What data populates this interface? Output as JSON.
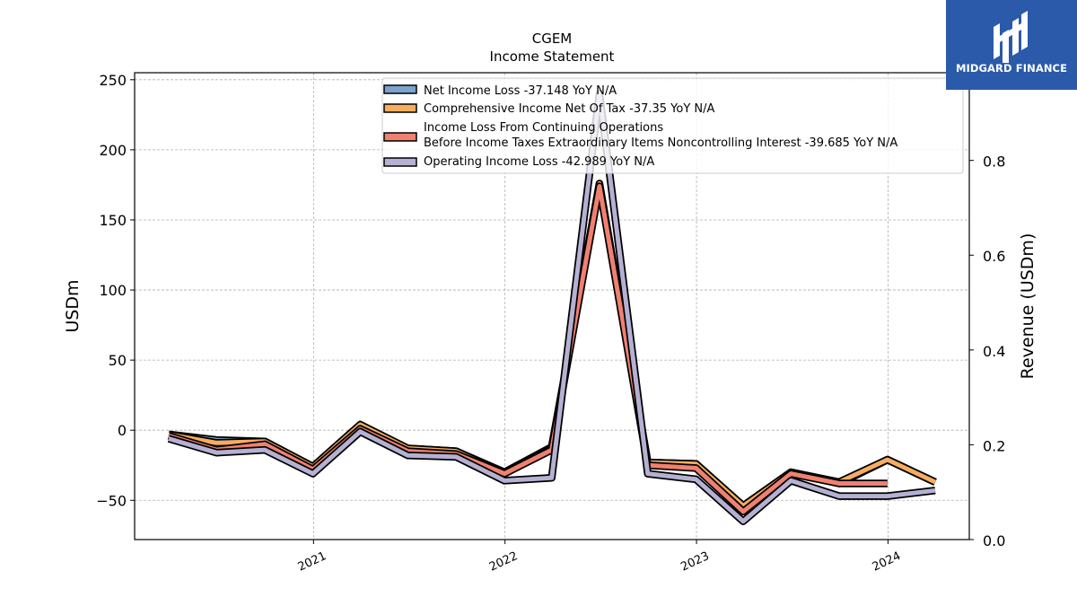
{
  "chart_data": {
    "type": "line",
    "title": "CGEM",
    "subtitle": "Income Statement",
    "ylabel": "USDm",
    "y2label": "Revenue (USDm)",
    "ylim": [
      -78,
      255
    ],
    "y2lim": [
      0.0,
      0.985
    ],
    "yticks": [
      "250",
      "200",
      "150",
      "100",
      "50",
      "0",
      "−50"
    ],
    "y2ticks": [
      "0.8",
      "0.6",
      "0.4",
      "0.2",
      "0.0"
    ],
    "xticks": [
      "2021",
      "2022",
      "2023",
      "2024"
    ],
    "grid": true,
    "legend_position": "top-center",
    "x": [
      "2020-03-31",
      "2020-06-30",
      "2020-09-30",
      "2020-12-31",
      "2021-03-31",
      "2021-06-30",
      "2021-09-30",
      "2021-12-31",
      "2022-03-31",
      "2022-06-30",
      "2022-09-30",
      "2022-12-31",
      "2023-03-31",
      "2023-06-30",
      "2023-09-30",
      "2023-12-31",
      "2024-03-31"
    ],
    "series": [
      {
        "name": "Net Income Loss  -37.148 YoY N/A",
        "color": "#7ba3cc",
        "values": [
          -3,
          -7,
          -8,
          -26,
          4,
          -13,
          -15,
          -30,
          -12,
          175,
          -23,
          -24,
          -54,
          -30,
          -38,
          -21,
          -37
        ]
      },
      {
        "name": "Comprehensive Income Net Of Tax  -37.35 YoY N/A",
        "color": "#f6ad60",
        "values": [
          -3,
          -9,
          -8,
          -26,
          4,
          -13,
          -15,
          -31,
          -13,
          176,
          -23,
          -24,
          -54,
          -30,
          -37,
          -21,
          -37
        ]
      },
      {
        "name": "Income Loss From Continuing Operations\nBefore Income Taxes Extraordinary Items Noncontrolling Interest  -39.685 YoY N/A",
        "color": "#f08070",
        "values": [
          -4,
          -14,
          -10,
          -28,
          1,
          -15,
          -17,
          -31,
          -14,
          174,
          -25,
          -27,
          -58,
          -31,
          -38,
          -38,
          null
        ]
      },
      {
        "name": "Operating Income Loss  -42.989 YoY N/A",
        "color": "#b4b1d3",
        "values": [
          -6,
          -16,
          -14,
          -31,
          -1,
          -18,
          -19,
          -36,
          -34,
          240,
          -31,
          -35,
          -65,
          -36,
          -47,
          -47,
          -43
        ]
      }
    ]
  },
  "logo": {
    "text": "MIDGARD FINANCE"
  }
}
